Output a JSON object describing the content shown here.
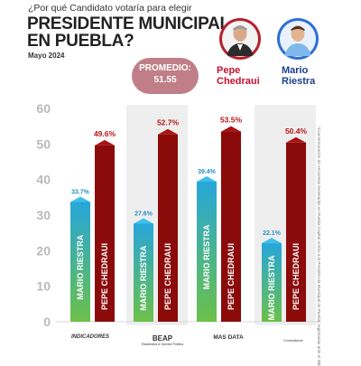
{
  "header": {
    "question": "¿Por qué Candidato votaría para elegir",
    "title_line1": "PRESIDENTE MUNICIPAL",
    "title_line2": "EN PUEBLA?",
    "date": "Mayo 2024"
  },
  "promedio": {
    "label": "PROMEDIO:",
    "value": "51.55"
  },
  "candidates": [
    {
      "first": "Pepe",
      "last": "Chedraui",
      "color": "#c8102e",
      "avatar_bg": "#b4212c"
    },
    {
      "first": "Mario",
      "last": "Riestra",
      "color": "#1a3d8f",
      "avatar_bg": "#2f6fd6"
    }
  ],
  "side_note": "*Conmemoración de encuestas levantadas en Puebla Capital rumbo a la Presidencia Municipal de Puebla, registradas ante el INE",
  "colors": {
    "riestra_top": "#27a6d9",
    "riestra_bottom": "#6cc04a",
    "chedraui": "#8b0a0a",
    "band": "#eeeeee"
  },
  "chart_data": {
    "type": "bar",
    "title": "¿Por qué Candidato votaría para elegir PRESIDENTE MUNICIPAL EN PUEBLA?",
    "ylim": [
      0,
      60
    ],
    "yticks": [
      0,
      10,
      20,
      30,
      40,
      50,
      60
    ],
    "categories": [
      "INDICADORES",
      "BEAP",
      "MAS DATA",
      "CONSULTORES"
    ],
    "series": [
      {
        "name": "MARIO RIESTRA",
        "values": [
          33.7,
          27.6,
          39.4,
          22.1
        ],
        "labels": [
          "33.7%",
          "27.6%",
          "39.4%",
          "22.1%"
        ]
      },
      {
        "name": "PEPE CHEDRAUI",
        "values": [
          49.6,
          52.7,
          53.5,
          50.4
        ],
        "labels": [
          "49.6%",
          "52.7%",
          "53.5%",
          "50.4%"
        ]
      }
    ],
    "grid": false,
    "legend": "top-right"
  },
  "footer": [
    {
      "name": "INDICADORES",
      "sub": ""
    },
    {
      "name": "BEAP",
      "sub": "Estadística & Opinión Pública"
    },
    {
      "name": "MAS DATA",
      "sub": ""
    },
    {
      "name": "",
      "sub": "Consultores"
    }
  ]
}
